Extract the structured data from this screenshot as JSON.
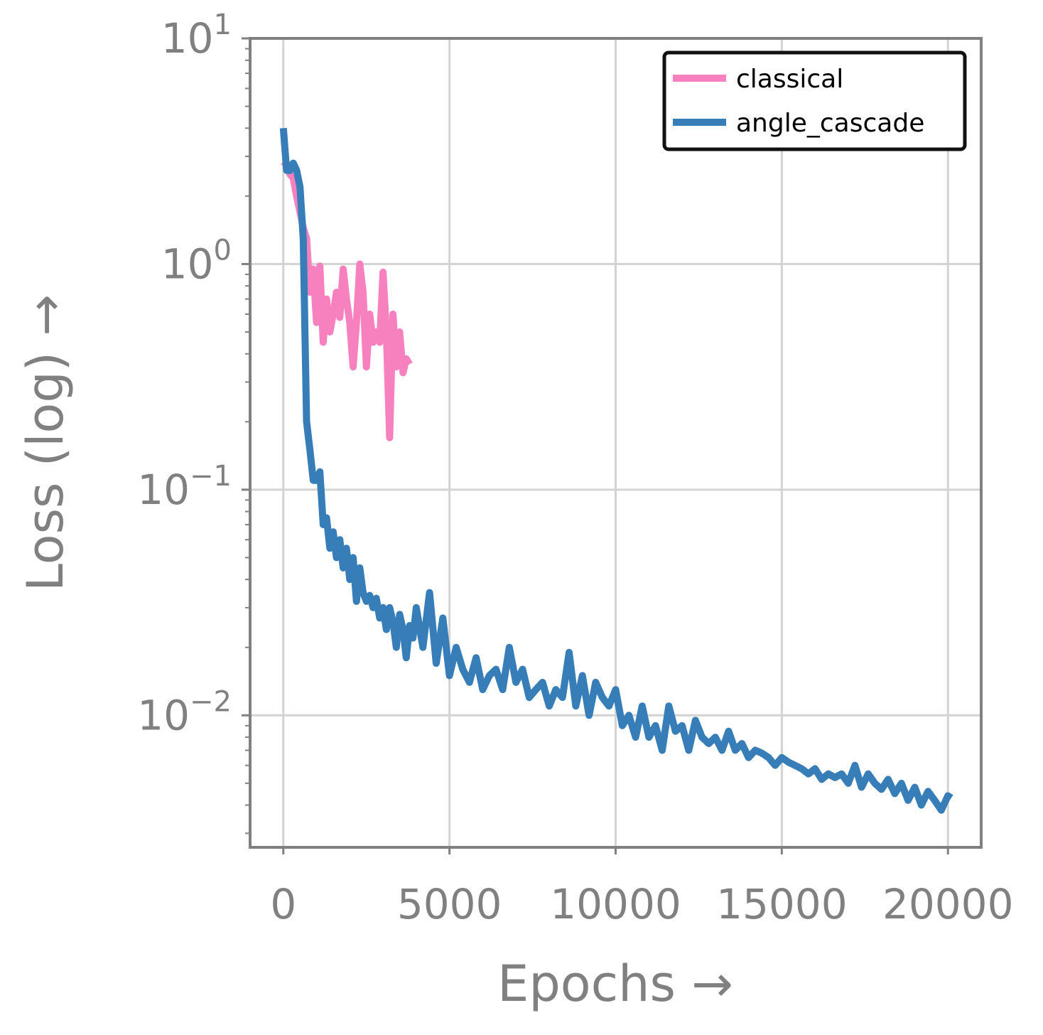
{
  "chart_data": {
    "type": "line",
    "xlabel": "Epochs →",
    "ylabel": "Loss (log) →",
    "x_scale": "linear",
    "y_scale": "log",
    "xlim": [
      -1000,
      21000
    ],
    "ylim": [
      0.0026,
      10
    ],
    "x_ticks": [
      {
        "value": 0,
        "label": "0"
      },
      {
        "value": 5000,
        "label": "5000"
      },
      {
        "value": 10000,
        "label": "10000"
      },
      {
        "value": 15000,
        "label": "15000"
      },
      {
        "value": 20000,
        "label": "20000"
      }
    ],
    "y_ticks": [
      {
        "value": 10,
        "base": "10",
        "exp": "1"
      },
      {
        "value": 1,
        "base": "10",
        "exp": "0"
      },
      {
        "value": 0.1,
        "base": "10",
        "exp": "−1"
      },
      {
        "value": 0.01,
        "base": "10",
        "exp": "−2"
      }
    ],
    "grid": true,
    "legend_position": "top-right",
    "series": [
      {
        "name": "classical",
        "color": "#f781bf",
        "x": [
          0,
          100,
          200,
          300,
          400,
          500,
          600,
          700,
          800,
          900,
          1000,
          1100,
          1200,
          1300,
          1400,
          1500,
          1600,
          1700,
          1800,
          1900,
          2000,
          2100,
          2200,
          2300,
          2400,
          2500,
          2600,
          2700,
          2800,
          2900,
          3000,
          3100,
          3200,
          3300,
          3400,
          3500,
          3600,
          3700,
          3800
        ],
        "y": [
          2.7,
          2.8,
          2.5,
          2.4,
          2.0,
          1.7,
          1.45,
          1.3,
          0.75,
          0.95,
          0.55,
          0.98,
          0.45,
          0.7,
          0.5,
          0.6,
          0.75,
          0.58,
          0.95,
          0.7,
          0.55,
          0.35,
          0.55,
          1.0,
          0.75,
          0.35,
          0.6,
          0.45,
          0.5,
          0.45,
          0.92,
          0.5,
          0.17,
          0.6,
          0.35,
          0.5,
          0.33,
          0.38,
          0.36
        ]
      },
      {
        "name": "angle_cascade",
        "color": "#377eb8",
        "x": [
          0,
          100,
          200,
          300,
          400,
          500,
          600,
          700,
          800,
          900,
          1000,
          1100,
          1200,
          1300,
          1400,
          1500,
          1600,
          1700,
          1800,
          1900,
          2000,
          2100,
          2200,
          2300,
          2400,
          2500,
          2600,
          2700,
          2800,
          2900,
          3000,
          3100,
          3200,
          3300,
          3400,
          3500,
          3600,
          3700,
          3800,
          3900,
          4000,
          4200,
          4400,
          4600,
          4800,
          5000,
          5200,
          5400,
          5600,
          5800,
          6000,
          6200,
          6400,
          6600,
          6800,
          7000,
          7200,
          7400,
          7600,
          7800,
          8000,
          8200,
          8400,
          8600,
          8800,
          9000,
          9200,
          9400,
          9600,
          9800,
          10000,
          10200,
          10400,
          10600,
          10800,
          11000,
          11200,
          11400,
          11600,
          11800,
          12000,
          12200,
          12400,
          12600,
          12800,
          13000,
          13200,
          13400,
          13600,
          13800,
          14000,
          14200,
          14400,
          14600,
          14800,
          15000,
          15200,
          15400,
          15600,
          15800,
          16000,
          16200,
          16400,
          16600,
          16800,
          17000,
          17200,
          17400,
          17600,
          17800,
          18000,
          18200,
          18400,
          18600,
          18800,
          19000,
          19200,
          19400,
          19600,
          19800,
          20000,
          20100
        ],
        "y": [
          4.0,
          2.6,
          2.6,
          2.8,
          2.6,
          2.2,
          1.3,
          0.2,
          0.15,
          0.11,
          0.11,
          0.12,
          0.07,
          0.075,
          0.055,
          0.065,
          0.05,
          0.06,
          0.045,
          0.055,
          0.04,
          0.05,
          0.032,
          0.045,
          0.035,
          0.032,
          0.034,
          0.03,
          0.033,
          0.027,
          0.03,
          0.024,
          0.03,
          0.026,
          0.02,
          0.028,
          0.024,
          0.018,
          0.025,
          0.022,
          0.03,
          0.02,
          0.035,
          0.017,
          0.027,
          0.015,
          0.02,
          0.016,
          0.014,
          0.018,
          0.013,
          0.015,
          0.016,
          0.013,
          0.02,
          0.014,
          0.016,
          0.012,
          0.013,
          0.014,
          0.011,
          0.013,
          0.012,
          0.019,
          0.011,
          0.015,
          0.01,
          0.014,
          0.012,
          0.011,
          0.013,
          0.009,
          0.01,
          0.008,
          0.011,
          0.008,
          0.009,
          0.007,
          0.011,
          0.0085,
          0.009,
          0.007,
          0.0095,
          0.008,
          0.0075,
          0.008,
          0.007,
          0.0085,
          0.007,
          0.0075,
          0.0065,
          0.007,
          0.0068,
          0.0065,
          0.006,
          0.0065,
          0.0062,
          0.006,
          0.0058,
          0.0055,
          0.0058,
          0.0052,
          0.0055,
          0.0053,
          0.0055,
          0.005,
          0.006,
          0.0048,
          0.0055,
          0.005,
          0.0047,
          0.0052,
          0.0045,
          0.005,
          0.0042,
          0.0048,
          0.004,
          0.0046,
          0.0042,
          0.0038,
          0.0044,
          0.0043
        ]
      }
    ]
  }
}
